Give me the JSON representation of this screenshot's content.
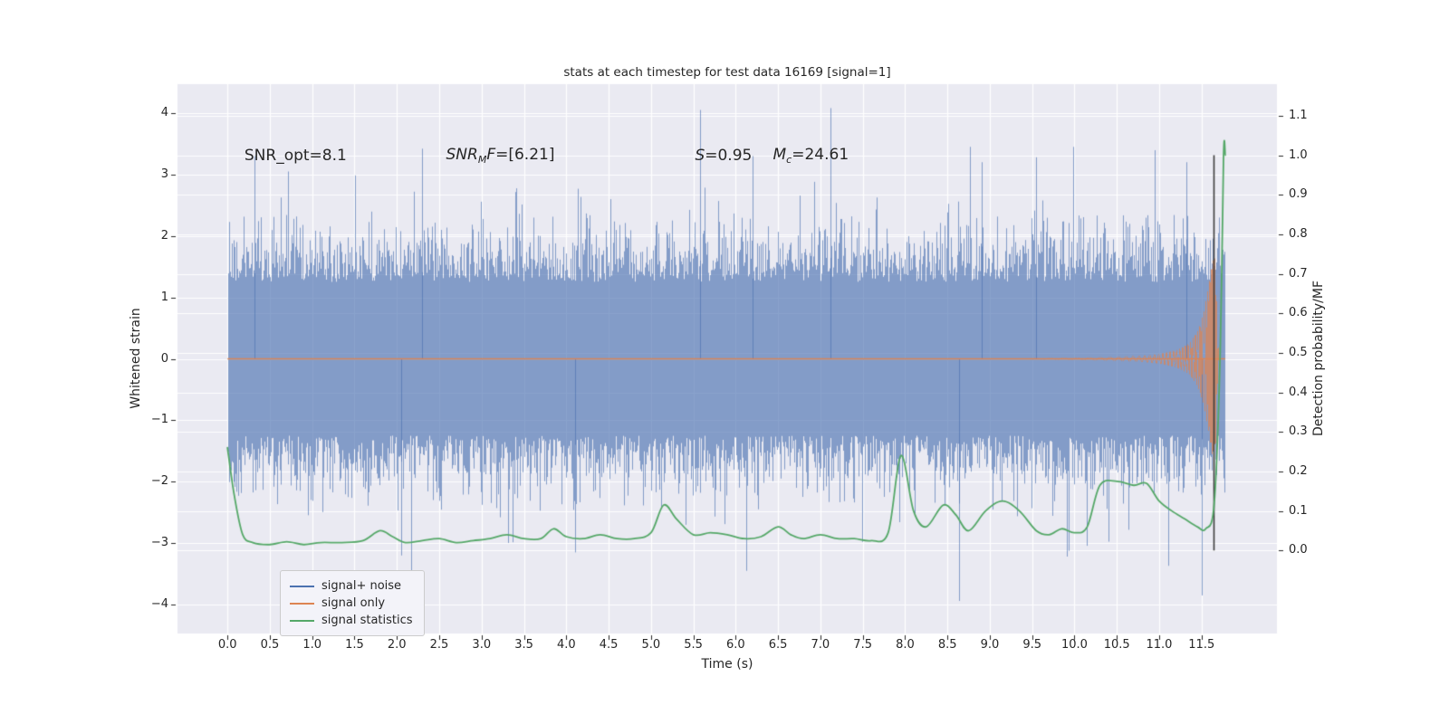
{
  "chart_data": {
    "type": "line",
    "title": "stats at each timestep for test data 16169 [signal=1]",
    "xlabel": "Time (s)",
    "ylabel_left": "Whitened strain",
    "ylabel_right": "Detection probability/MF",
    "xlim": [
      -0.59,
      12.39
    ],
    "ylim_left": [
      -4.47,
      4.47
    ],
    "ylim_right": [
      -0.21,
      1.18
    ],
    "xticks": [
      0,
      0.5,
      1,
      1.5,
      2,
      2.5,
      3,
      3.5,
      4,
      4.5,
      5,
      5.5,
      6,
      6.5,
      7,
      7.5,
      8,
      8.5,
      9,
      9.5,
      10,
      10.5,
      11,
      11.5
    ],
    "yticks_left": [
      -4,
      -3,
      -2,
      -1,
      0,
      1,
      2,
      3,
      4
    ],
    "yticks_right": [
      0,
      0.1,
      0.2,
      0.3,
      0.4,
      0.5,
      0.6,
      0.7,
      0.8,
      0.9,
      1.0,
      1.1
    ],
    "grid": true,
    "background": "#eaeaf2",
    "figure_background": "#ffffff",
    "grid_color": "#ffffff",
    "text_color": "#262626",
    "annotations": [
      {
        "x": 0.2,
        "y": 3.3,
        "parts": [
          {
            "t": "SNR_opt=8.1"
          }
        ]
      },
      {
        "x": 2.58,
        "y": 3.3,
        "parts": [
          {
            "t": "SNR",
            "i": 1
          },
          {
            "t": "M",
            "i": 1,
            "sub": 1
          },
          {
            "t": "F",
            "i": 1
          },
          {
            "t": "=[6.21]"
          }
        ]
      },
      {
        "x": 5.52,
        "y": 3.3,
        "parts": [
          {
            "t": "S",
            "i": 1
          },
          {
            "t": "=0.95"
          }
        ]
      },
      {
        "x": 6.44,
        "y": 3.3,
        "parts": [
          {
            "t": "M",
            "i": 1
          },
          {
            "t": "c",
            "i": 1,
            "sub": 1
          },
          {
            "t": "=24.61"
          }
        ]
      }
    ],
    "legend": {
      "position": "lower left",
      "entries": [
        {
          "label": "signal+ noise",
          "color": "#4c72b0"
        },
        {
          "label": "signal only",
          "color": "#dd8452"
        },
        {
          "label": "signal statistics",
          "color": "#55a868"
        }
      ]
    },
    "axvline": {
      "x": 11.64,
      "y0": 0.0,
      "y1": 1.0,
      "color": "#3d3d3d"
    },
    "series": {
      "noise": {
        "name": "signal+ noise",
        "color": "#4c72b0",
        "alpha": 0.65,
        "t_start": 0.0,
        "t_end": 11.78,
        "core": 1.25,
        "sigma": 0.5,
        "tail_prob": 0.035,
        "tail_scale": 0.55,
        "clip": 3.45,
        "seed": 16169,
        "feature_spikes": [
          [
            0.32,
            3.3
          ],
          [
            2.3,
            3.42
          ],
          [
            5.58,
            4.05
          ],
          [
            6.2,
            3.3
          ],
          [
            7.12,
            4.08
          ],
          [
            8.9,
            3.2
          ],
          [
            9.55,
            3.28
          ],
          [
            11.32,
            3.2
          ],
          [
            2.05,
            -3.2
          ],
          [
            4.1,
            -3.15
          ],
          [
            8.64,
            -3.94
          ],
          [
            11.5,
            -3.85
          ]
        ]
      },
      "signal": {
        "name": "signal only",
        "color": "#dd8452",
        "baseline": 0.0,
        "envelope": [
          [
            9.5,
            0.01
          ],
          [
            10.0,
            0.02
          ],
          [
            10.4,
            0.03
          ],
          [
            10.8,
            0.05
          ],
          [
            11.0,
            0.08
          ],
          [
            11.2,
            0.14
          ],
          [
            11.35,
            0.25
          ],
          [
            11.45,
            0.45
          ],
          [
            11.52,
            0.75
          ],
          [
            11.58,
            1.2
          ],
          [
            11.62,
            1.55
          ],
          [
            11.65,
            1.7
          ],
          [
            11.67,
            1.2
          ],
          [
            11.68,
            0.5
          ],
          [
            11.7,
            0.08
          ],
          [
            11.72,
            0.0
          ]
        ],
        "chirp": {
          "f0": 6,
          "f1": 46,
          "span": 2.2
        }
      },
      "stats": {
        "name": "signal statistics",
        "color": "#55a868",
        "axis": "right",
        "points": [
          [
            0.0,
            0.26
          ],
          [
            0.08,
            0.14
          ],
          [
            0.18,
            0.04
          ],
          [
            0.3,
            0.02
          ],
          [
            0.5,
            0.015
          ],
          [
            0.7,
            0.022
          ],
          [
            0.9,
            0.015
          ],
          [
            1.1,
            0.02
          ],
          [
            1.35,
            0.02
          ],
          [
            1.6,
            0.025
          ],
          [
            1.8,
            0.05
          ],
          [
            1.95,
            0.035
          ],
          [
            2.1,
            0.02
          ],
          [
            2.3,
            0.025
          ],
          [
            2.5,
            0.03
          ],
          [
            2.7,
            0.02
          ],
          [
            2.9,
            0.025
          ],
          [
            3.1,
            0.03
          ],
          [
            3.3,
            0.04
          ],
          [
            3.5,
            0.03
          ],
          [
            3.7,
            0.03
          ],
          [
            3.85,
            0.055
          ],
          [
            4.0,
            0.035
          ],
          [
            4.2,
            0.03
          ],
          [
            4.4,
            0.04
          ],
          [
            4.6,
            0.03
          ],
          [
            4.8,
            0.03
          ],
          [
            5.0,
            0.045
          ],
          [
            5.15,
            0.115
          ],
          [
            5.3,
            0.08
          ],
          [
            5.5,
            0.04
          ],
          [
            5.7,
            0.045
          ],
          [
            5.9,
            0.04
          ],
          [
            6.1,
            0.03
          ],
          [
            6.3,
            0.035
          ],
          [
            6.5,
            0.06
          ],
          [
            6.65,
            0.04
          ],
          [
            6.8,
            0.03
          ],
          [
            7.0,
            0.04
          ],
          [
            7.2,
            0.03
          ],
          [
            7.4,
            0.03
          ],
          [
            7.6,
            0.025
          ],
          [
            7.8,
            0.045
          ],
          [
            7.95,
            0.24
          ],
          [
            8.1,
            0.1
          ],
          [
            8.25,
            0.06
          ],
          [
            8.45,
            0.115
          ],
          [
            8.6,
            0.09
          ],
          [
            8.75,
            0.05
          ],
          [
            8.95,
            0.1
          ],
          [
            9.15,
            0.125
          ],
          [
            9.35,
            0.1
          ],
          [
            9.55,
            0.05
          ],
          [
            9.7,
            0.04
          ],
          [
            9.85,
            0.055
          ],
          [
            10.0,
            0.045
          ],
          [
            10.15,
            0.06
          ],
          [
            10.3,
            0.165
          ],
          [
            10.5,
            0.175
          ],
          [
            10.7,
            0.165
          ],
          [
            10.85,
            0.17
          ],
          [
            11.0,
            0.125
          ],
          [
            11.15,
            0.1
          ],
          [
            11.3,
            0.08
          ],
          [
            11.45,
            0.06
          ],
          [
            11.55,
            0.055
          ],
          [
            11.65,
            0.12
          ],
          [
            11.72,
            0.5
          ],
          [
            11.76,
            1.0
          ],
          [
            11.78,
            1.0
          ]
        ]
      }
    }
  }
}
